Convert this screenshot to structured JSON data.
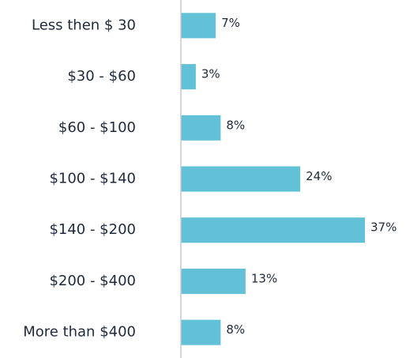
{
  "chart_data": {
    "type": "bar",
    "orientation": "horizontal",
    "categories": [
      "Less then $ 30",
      "$30 - $60",
      "$60 - $100",
      "$100 - $140",
      "$140 - $200",
      "$200 - $400",
      "More than $400"
    ],
    "values": [
      7,
      3,
      8,
      24,
      37,
      13,
      8
    ],
    "value_labels": [
      "7%",
      "3%",
      "8%",
      "24%",
      "37%",
      "13%",
      "8%"
    ],
    "color": "#62c1d6"
  }
}
